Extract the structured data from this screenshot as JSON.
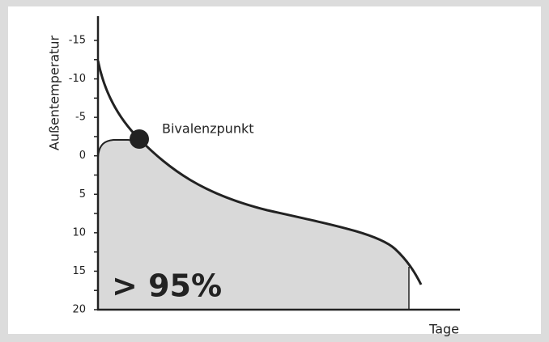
{
  "y_axis": {
    "label": "Außentemperatur",
    "ticks": [
      -15,
      -10,
      -5,
      0,
      5,
      10,
      15,
      20
    ]
  },
  "x_axis": {
    "label": "Tage"
  },
  "annotation": "Bivalenzpunkt",
  "share_label": "> 95%"
}
